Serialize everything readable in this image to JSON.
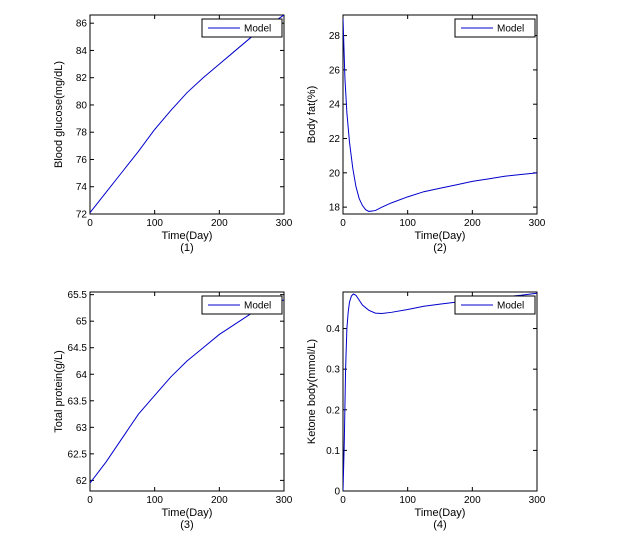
{
  "colors": {
    "series": "#0000cc",
    "axes": "#000000",
    "background": "#ffffff"
  },
  "chart_data": [
    {
      "type": "line",
      "sublabel": "(1)",
      "xlabel": "Time(Day)",
      "ylabel": "Blood glucose(mg/dL)",
      "xlim": [
        0,
        300
      ],
      "ylim": [
        72,
        86.6
      ],
      "xticks": [
        0,
        100,
        200,
        300
      ],
      "yticks": [
        72,
        74,
        76,
        78,
        80,
        82,
        84,
        86
      ],
      "grid": false,
      "legend": {
        "position": "top-right",
        "entries": [
          "Model"
        ]
      },
      "series": [
        {
          "name": "Model",
          "x": [
            0,
            25,
            50,
            75,
            100,
            125,
            150,
            175,
            200,
            225,
            250,
            275,
            300
          ],
          "y": [
            72.1,
            73.6,
            75.1,
            76.6,
            78.2,
            79.6,
            80.9,
            82.0,
            83.0,
            84.0,
            85.0,
            85.8,
            86.6
          ]
        }
      ]
    },
    {
      "type": "line",
      "sublabel": "(2)",
      "xlabel": "Time(Day)",
      "ylabel": "Body fat(%)",
      "xlim": [
        0,
        300
      ],
      "ylim": [
        17.6,
        29.2
      ],
      "xticks": [
        0,
        100,
        200,
        300
      ],
      "yticks": [
        18,
        20,
        22,
        24,
        26,
        28
      ],
      "grid": false,
      "legend": {
        "position": "top-right",
        "entries": [
          "Model"
        ]
      },
      "series": [
        {
          "name": "Model",
          "x": [
            0,
            3,
            6,
            10,
            15,
            20,
            25,
            30,
            35,
            40,
            50,
            60,
            75,
            100,
            125,
            150,
            175,
            200,
            225,
            250,
            275,
            300
          ],
          "y": [
            29.0,
            25.5,
            23.5,
            21.8,
            20.3,
            19.2,
            18.5,
            18.1,
            17.85,
            17.75,
            17.8,
            18.0,
            18.25,
            18.6,
            18.9,
            19.1,
            19.3,
            19.5,
            19.65,
            19.8,
            19.9,
            20.0
          ]
        }
      ]
    },
    {
      "type": "line",
      "sublabel": "(3)",
      "xlabel": "Time(Day)",
      "ylabel": "Total protein(g/L)",
      "xlim": [
        0,
        300
      ],
      "ylim": [
        61.8,
        65.55
      ],
      "xticks": [
        0,
        100,
        200,
        300
      ],
      "yticks": [
        62,
        62.5,
        63,
        63.5,
        64,
        64.5,
        65,
        65.5
      ],
      "grid": false,
      "legend": {
        "position": "top-right",
        "entries": [
          "Model"
        ]
      },
      "series": [
        {
          "name": "Model",
          "x": [
            0,
            25,
            50,
            75,
            100,
            125,
            150,
            175,
            200,
            225,
            250,
            275,
            300
          ],
          "y": [
            61.95,
            62.35,
            62.8,
            63.25,
            63.6,
            63.95,
            64.25,
            64.5,
            64.75,
            64.95,
            65.15,
            65.3,
            65.4
          ]
        }
      ]
    },
    {
      "type": "line",
      "sublabel": "(4)",
      "xlabel": "Time(Day)",
      "ylabel": "Ketone body(mmol/L)",
      "xlim": [
        0,
        300
      ],
      "ylim": [
        0,
        0.49
      ],
      "xticks": [
        0,
        100,
        200,
        300
      ],
      "yticks": [
        0,
        0.1,
        0.2,
        0.3,
        0.4
      ],
      "grid": false,
      "legend": {
        "position": "top-right",
        "entries": [
          "Model"
        ]
      },
      "series": [
        {
          "name": "Model",
          "x": [
            0,
            2,
            4,
            6,
            8,
            10,
            13,
            16,
            20,
            25,
            30,
            40,
            50,
            60,
            75,
            100,
            125,
            150,
            175,
            200,
            225,
            250,
            275,
            300
          ],
          "y": [
            0.0,
            0.12,
            0.3,
            0.4,
            0.44,
            0.465,
            0.48,
            0.485,
            0.482,
            0.47,
            0.458,
            0.445,
            0.438,
            0.437,
            0.44,
            0.447,
            0.455,
            0.46,
            0.465,
            0.47,
            0.474,
            0.478,
            0.482,
            0.487
          ]
        }
      ]
    }
  ]
}
